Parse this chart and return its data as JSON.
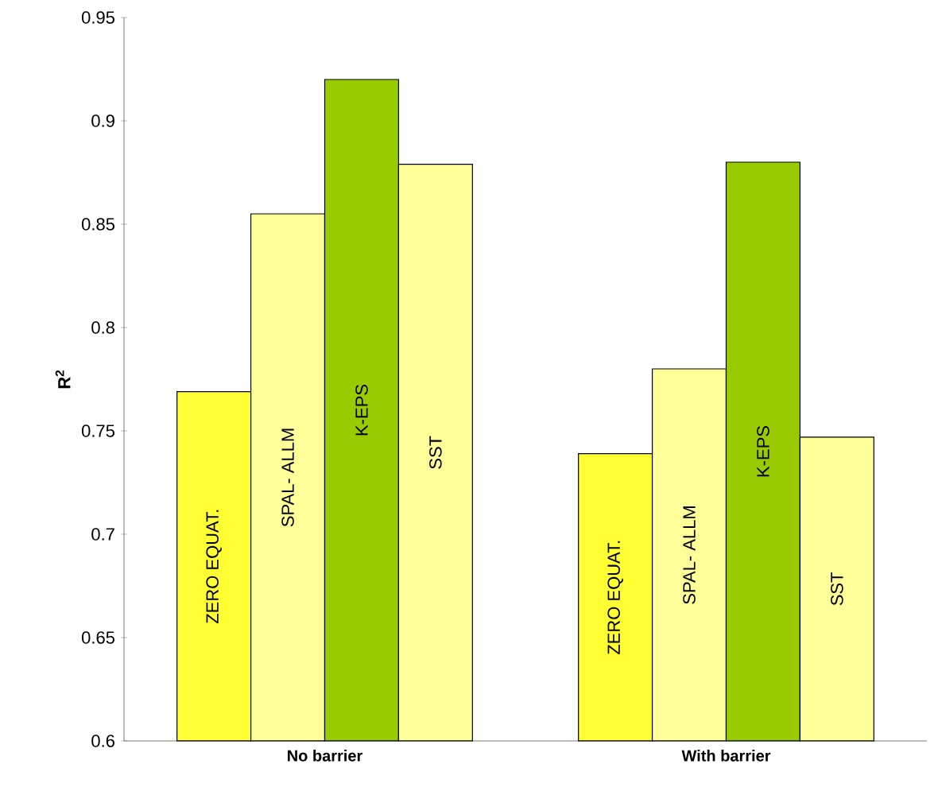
{
  "chart_data": {
    "type": "bar",
    "ylabel": "R$^{2}$",
    "categories": [
      "No barrier",
      "With barrier"
    ],
    "series": [
      {
        "name": "ZERO EQUAT.",
        "color": "#ffff33",
        "values": [
          0.769,
          0.739
        ]
      },
      {
        "name": "SPAL- ALLM",
        "color": "#ffff99",
        "values": [
          0.855,
          0.78
        ]
      },
      {
        "name": "K-EPS",
        "color": "#99cc00",
        "values": [
          0.92,
          0.88
        ]
      },
      {
        "name": "SST",
        "color": "#ffff99",
        "values": [
          0.879,
          0.747
        ]
      }
    ],
    "ylim": [
      0.6,
      0.95
    ],
    "yticks": [
      0.6,
      0.65,
      0.7,
      0.75,
      0.8,
      0.85,
      0.9,
      0.95
    ]
  }
}
